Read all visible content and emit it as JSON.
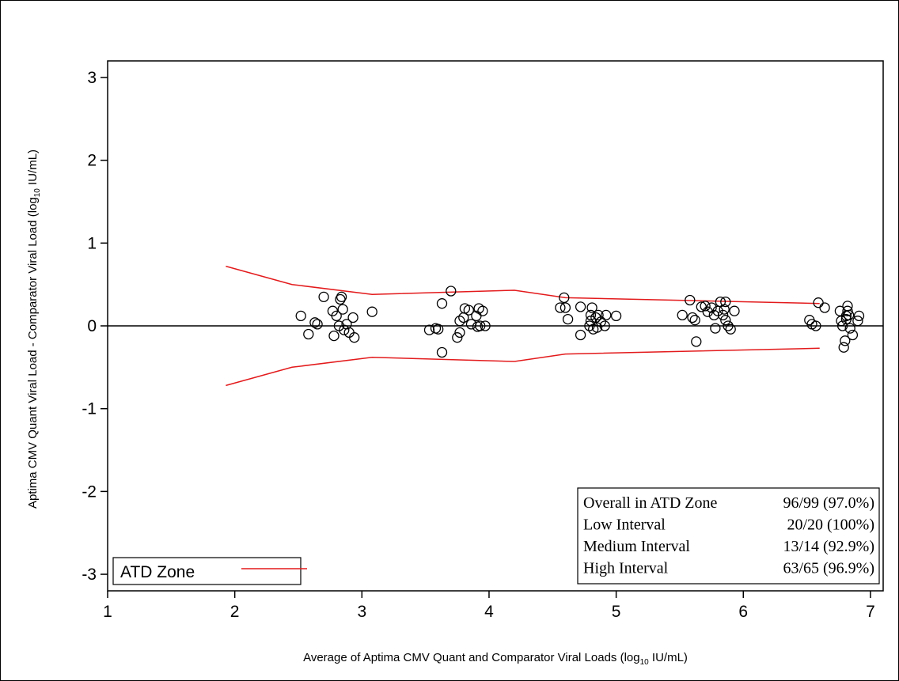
{
  "chart_data": {
    "type": "scatter",
    "xlabel_main": "Average of Aptima CMV Quant and Comparator Viral Loads (log",
    "xlabel_sub": "10",
    "xlabel_end": " IU/mL)",
    "ylabel_main": "Aptima CMV Quant Viral Load - Comparator Viral Load (log",
    "ylabel_sub": "10",
    "ylabel_end": " IU/mL)",
    "xlim": [
      1,
      7.1
    ],
    "ylim": [
      -3.2,
      3.2
    ],
    "x_ticks": [
      1,
      2,
      3,
      4,
      5,
      6,
      7
    ],
    "y_ticks": [
      3,
      2,
      1,
      0,
      -1,
      -2,
      -3
    ],
    "reference_line_y": 0,
    "series": [
      {
        "name": "ATD Zone",
        "kind": "line",
        "color": "#e31a1c",
        "upper": [
          [
            1.93,
            0.72
          ],
          [
            2.45,
            0.5
          ],
          [
            3.08,
            0.38
          ],
          [
            4.2,
            0.43
          ],
          [
            4.6,
            0.34
          ],
          [
            6.6,
            0.27
          ]
        ],
        "lower": [
          [
            1.93,
            -0.72
          ],
          [
            2.45,
            -0.5
          ],
          [
            3.08,
            -0.38
          ],
          [
            4.2,
            -0.43
          ],
          [
            4.6,
            -0.34
          ],
          [
            6.6,
            -0.27
          ]
        ]
      },
      {
        "kind": "scatter",
        "marker": "open-circle",
        "color": "#000000",
        "points": [
          [
            2.52,
            0.12
          ],
          [
            2.58,
            -0.1
          ],
          [
            2.63,
            0.04
          ],
          [
            2.65,
            0.02
          ],
          [
            2.7,
            0.35
          ],
          [
            2.77,
            0.18
          ],
          [
            2.78,
            -0.12
          ],
          [
            2.8,
            0.12
          ],
          [
            2.82,
            0.0
          ],
          [
            2.83,
            0.32
          ],
          [
            2.84,
            0.35
          ],
          [
            2.85,
            0.2
          ],
          [
            2.86,
            -0.05
          ],
          [
            2.88,
            0.02
          ],
          [
            2.9,
            -0.08
          ],
          [
            2.93,
            0.1
          ],
          [
            2.94,
            -0.14
          ],
          [
            3.08,
            0.17
          ],
          [
            3.53,
            -0.05
          ],
          [
            3.58,
            -0.03
          ],
          [
            3.6,
            -0.04
          ],
          [
            3.63,
            0.27
          ],
          [
            3.63,
            -0.32
          ],
          [
            3.7,
            0.42
          ],
          [
            3.75,
            -0.14
          ],
          [
            3.77,
            -0.08
          ],
          [
            3.77,
            0.06
          ],
          [
            3.8,
            0.1
          ],
          [
            3.81,
            0.21
          ],
          [
            3.84,
            0.19
          ],
          [
            3.86,
            0.02
          ],
          [
            3.9,
            0.12
          ],
          [
            3.91,
            -0.01
          ],
          [
            3.92,
            0.21
          ],
          [
            3.93,
            0.0
          ],
          [
            3.95,
            0.18
          ],
          [
            3.97,
            0.0
          ],
          [
            4.56,
            0.22
          ],
          [
            4.59,
            0.34
          ],
          [
            4.6,
            0.22
          ],
          [
            4.62,
            0.08
          ],
          [
            4.72,
            0.23
          ],
          [
            4.72,
            -0.11
          ],
          [
            4.79,
            0.0
          ],
          [
            4.8,
            0.13
          ],
          [
            4.8,
            0.06
          ],
          [
            4.81,
            0.22
          ],
          [
            4.82,
            -0.04
          ],
          [
            4.84,
            0.1
          ],
          [
            4.85,
            -0.02
          ],
          [
            4.86,
            0.13
          ],
          [
            4.88,
            0.05
          ],
          [
            4.91,
            0.0
          ],
          [
            4.92,
            0.13
          ],
          [
            5.0,
            0.12
          ],
          [
            5.52,
            0.13
          ],
          [
            5.58,
            0.31
          ],
          [
            5.6,
            0.1
          ],
          [
            5.62,
            0.07
          ],
          [
            5.63,
            -0.19
          ],
          [
            5.67,
            0.23
          ],
          [
            5.7,
            0.24
          ],
          [
            5.72,
            0.17
          ],
          [
            5.75,
            0.22
          ],
          [
            5.77,
            0.13
          ],
          [
            5.78,
            -0.03
          ],
          [
            5.8,
            0.18
          ],
          [
            5.82,
            0.29
          ],
          [
            5.84,
            0.13
          ],
          [
            5.86,
            0.29
          ],
          [
            5.86,
            0.07
          ],
          [
            5.88,
            0.0
          ],
          [
            5.9,
            -0.04
          ],
          [
            5.93,
            0.18
          ],
          [
            5.85,
            0.2
          ],
          [
            6.52,
            0.07
          ],
          [
            6.54,
            0.02
          ],
          [
            6.57,
            0.0
          ],
          [
            6.59,
            0.28
          ],
          [
            6.64,
            0.22
          ],
          [
            6.76,
            0.18
          ],
          [
            6.77,
            0.06
          ],
          [
            6.78,
            0.0
          ],
          [
            6.79,
            -0.26
          ],
          [
            6.8,
            -0.18
          ],
          [
            6.81,
            0.08
          ],
          [
            6.81,
            0.12
          ],
          [
            6.82,
            0.24
          ],
          [
            6.82,
            0.18
          ],
          [
            6.83,
            0.13
          ],
          [
            6.84,
            -0.03
          ],
          [
            6.86,
            -0.11
          ],
          [
            6.9,
            0.06
          ],
          [
            6.91,
            0.12
          ]
        ]
      }
    ],
    "legend": {
      "label": "ATD Zone",
      "placement": "bottom-left"
    },
    "stats_box": {
      "placement": "bottom-right",
      "rows": [
        {
          "label": "Overall in ATD Zone",
          "value": "96/99 (97.0%)"
        },
        {
          "label": "Low Interval",
          "value": "20/20 (100%)"
        },
        {
          "label": "Medium Interval",
          "value": "13/14 (92.9%)"
        },
        {
          "label": "High Interval",
          "value": "63/65 (96.9%)"
        }
      ]
    }
  }
}
